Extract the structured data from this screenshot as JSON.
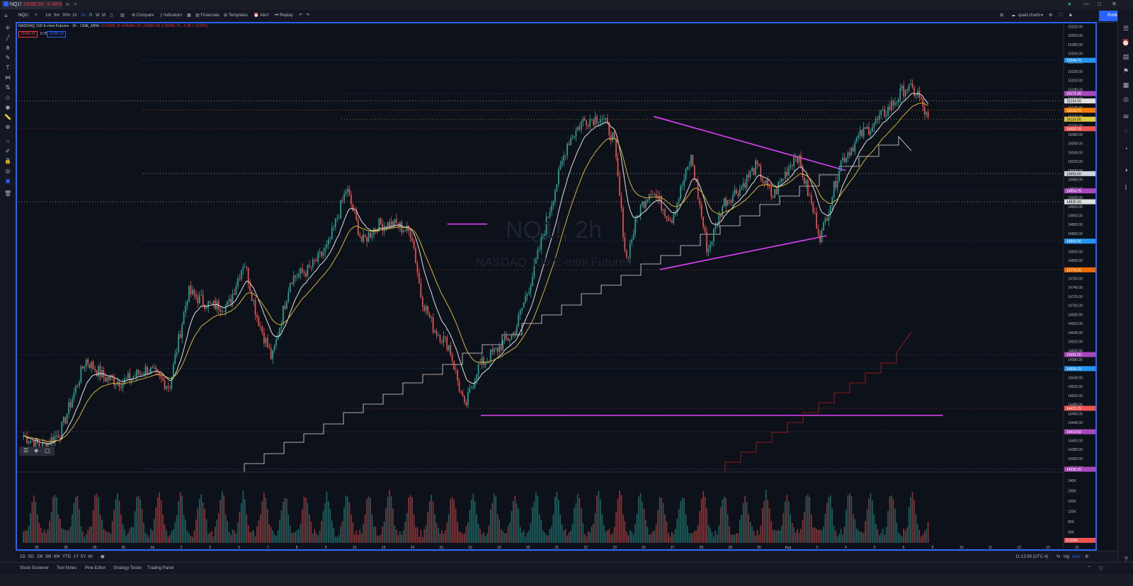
{
  "tab": {
    "symbol": "NQ1!",
    "price": "15095.50",
    "change": "−0.46%"
  },
  "toolbar": {
    "symbol": "NQ1!",
    "intervals": [
      "1m",
      "5m",
      "30m",
      "1h",
      "2h",
      "D",
      "W",
      "M"
    ],
    "active_interval": "2h",
    "compare": "Compare",
    "indicators": "Indicators",
    "financials": "Financials",
    "templates": "Templates",
    "alert": "Alert",
    "replay": "Replay",
    "layout_name": "quad charts",
    "publish": "Publish"
  },
  "legend": {
    "title": "NASDAQ 100 E-mini Futures · 2h · CME_MINI",
    "ohlc": "O15095.75 H15096.25 L15085.00 C15092.75 −3.00 (−0.02%)",
    "sell_price": "15085.25",
    "spread": "0.75",
    "buy_price": "15086.00"
  },
  "watermark": {
    "symbol": "NQ1!, 2h",
    "name": "NASDAQ 100 E-mini Futures"
  },
  "colors": {
    "up": "#26a69a",
    "down": "#ef5350",
    "ema_fast": "#e0e0e0",
    "ema_slow": "#d4b43a",
    "trendline": "#e040fb",
    "accent": "#2962ff"
  },
  "chart_data": {
    "type": "candlestick",
    "symbol": "NQ1!",
    "interval": "2h",
    "ylim": [
      14330,
      15330
    ],
    "y_ticks": [
      "15320.00",
      "15300.00",
      "15280.00",
      "15260.00",
      "15240.00",
      "15220.00",
      "15200.00",
      "15180.00",
      "15160.00",
      "15140.00",
      "15120.00",
      "15100.00",
      "15080.00",
      "15060.00",
      "15040.00",
      "15020.00",
      "15000.00",
      "14980.00",
      "14960.00",
      "14940.00",
      "14920.00",
      "14900.00",
      "14880.00",
      "14860.00",
      "14840.00",
      "14820.00",
      "14800.00",
      "14780.00",
      "14760.00",
      "14740.00",
      "14720.00",
      "14700.00",
      "14680.00",
      "14660.00",
      "14640.00",
      "14620.00",
      "14600.00",
      "14580.00",
      "14560.00",
      "14540.00",
      "14520.00",
      "14500.00",
      "14480.00",
      "14460.00",
      "14440.00",
      "14420.00",
      "14400.00",
      "14380.00",
      "14360.00",
      "14340.00"
    ],
    "x_labels": [
      "25",
      "28",
      "29",
      "30",
      "Jul",
      "2",
      "5",
      "6",
      "7",
      "8",
      "9",
      "12",
      "13",
      "14",
      "15",
      "16",
      "19",
      "20",
      "21",
      "22",
      "23",
      "26",
      "27",
      "28",
      "29",
      "30",
      "Aug",
      "3",
      "4",
      "5",
      "6",
      "9",
      "10",
      "11",
      "12",
      "13",
      "16"
    ],
    "price_tags": [
      {
        "label": "15244.75",
        "value": 15244.75,
        "color": "#2196f3"
      },
      {
        "label": "15171.00",
        "value": 15171,
        "color": "#ab47bc"
      },
      {
        "label": "15154.50",
        "value": 15154.5,
        "color": "#e0e0e0"
      },
      {
        "label": "15133.75",
        "value": 15133.75,
        "color": "#f57c00"
      },
      {
        "label": "15114.00",
        "value": 15114,
        "color": "#e0c840"
      },
      {
        "label": "15092.75",
        "value": 15092.75,
        "color": "#ef5350"
      },
      {
        "label": "14993.00",
        "value": 14993,
        "color": "#d1d4dc"
      },
      {
        "label": "14954.75",
        "value": 14954.75,
        "color": "#ab47bc"
      },
      {
        "label": "14930.50",
        "value": 14930.5,
        "color": "#e0e0e0"
      },
      {
        "label": "14843.00",
        "value": 14843,
        "color": "#2196f3"
      },
      {
        "label": "14779.25",
        "value": 14779.25,
        "color": "#ef6c00"
      },
      {
        "label": "14591.00",
        "value": 14591,
        "color": "#ab47bc"
      },
      {
        "label": "14559.75",
        "value": 14559.75,
        "color": "#2196f3"
      },
      {
        "label": "14471.75",
        "value": 14471.75,
        "color": "#ef5350"
      },
      {
        "label": "14419.50",
        "value": 14419.5,
        "color": "#ab47bc"
      },
      {
        "label": "14336.25",
        "value": 14336.25,
        "color": "#ab47bc"
      }
    ],
    "volume_ticks": [
      "240K",
      "200K",
      "160K",
      "120K",
      "80K",
      "40K"
    ],
    "volume_last": "8.323K",
    "trendlines": [
      {
        "from": [
          0.609,
          15120
        ],
        "to": [
          0.792,
          15000
        ]
      },
      {
        "from": [
          0.615,
          14780
        ],
        "to": [
          0.774,
          14855
        ]
      },
      {
        "from": [
          0.412,
          14881
        ],
        "to": [
          0.45,
          14881
        ]
      },
      {
        "from": [
          0.444,
          14456
        ],
        "to": [
          0.885,
          14456
        ]
      }
    ]
  },
  "time_readout": "11:13:56 (UTC-4)",
  "range_buttons": [
    "1D",
    "5D",
    "1M",
    "3M",
    "6M",
    "YTD",
    "1Y",
    "5Y",
    "All"
  ],
  "scale_opts": [
    "%",
    "log",
    "auto"
  ],
  "panels": [
    "Stock Screener",
    "Text Notes",
    "Pine Editor",
    "Strategy Tester",
    "Trading Panel"
  ]
}
